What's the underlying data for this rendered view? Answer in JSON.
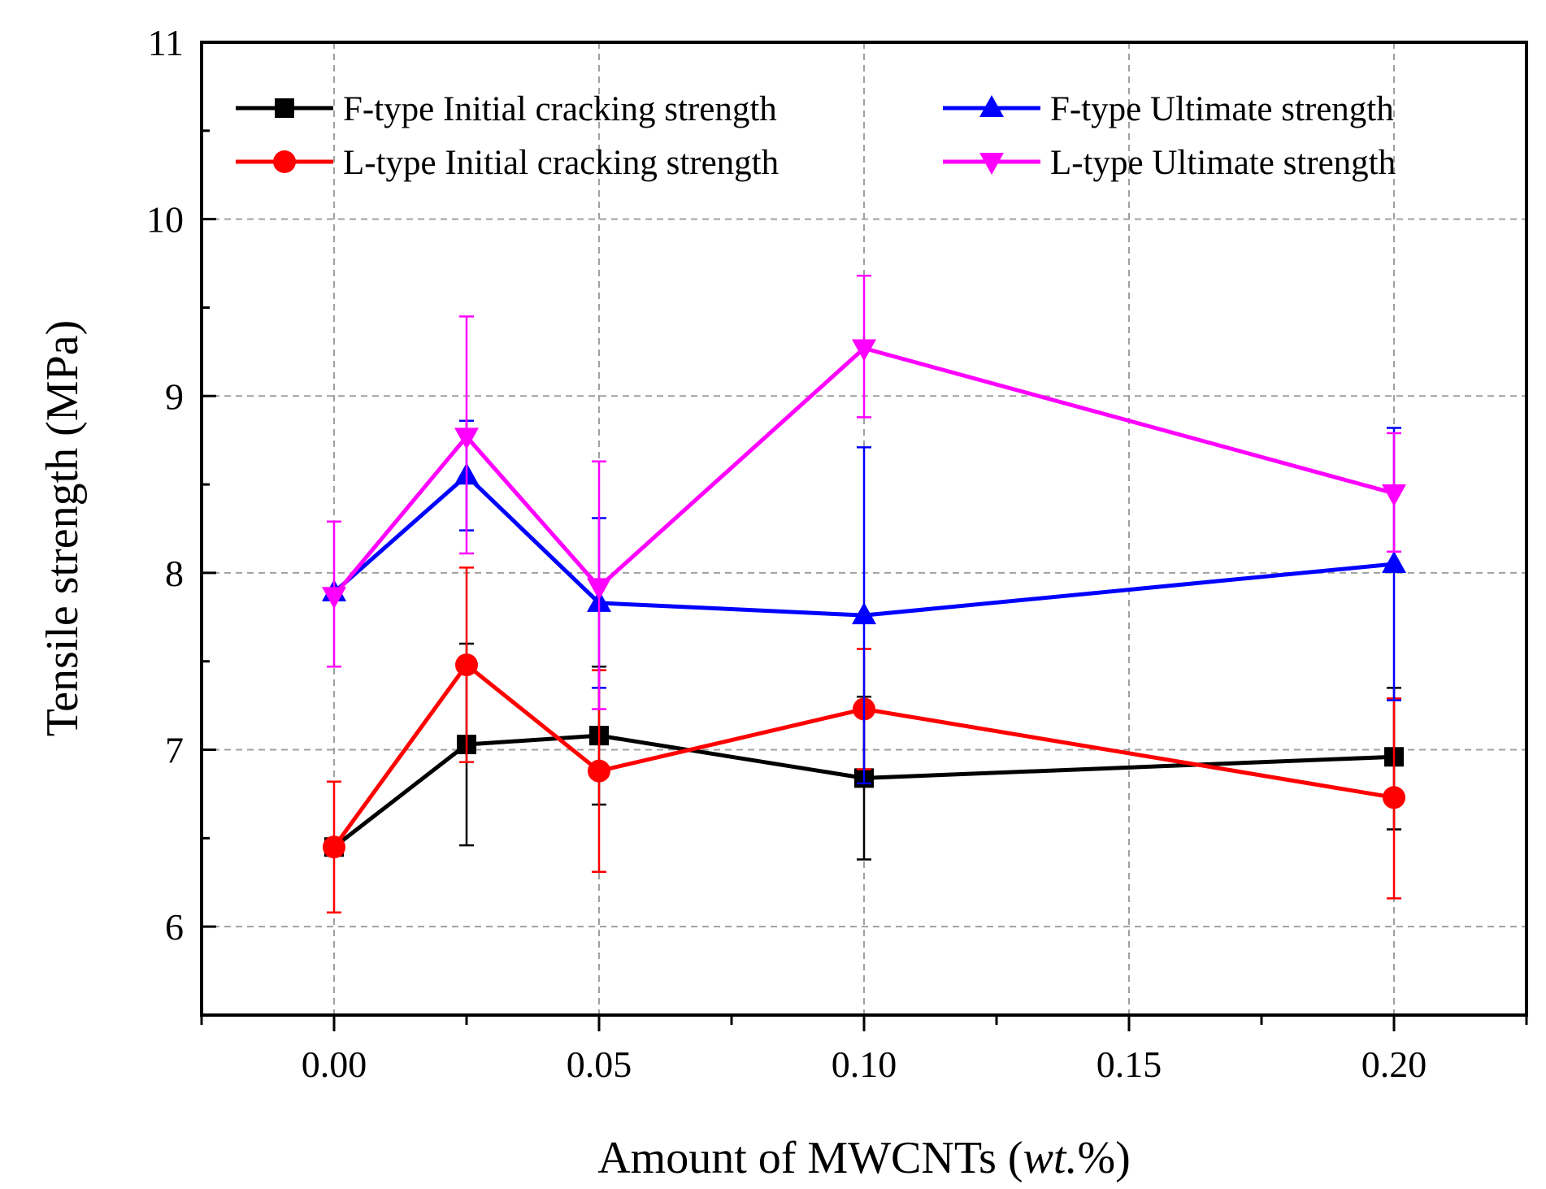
{
  "chart_data": {
    "type": "line",
    "title": "",
    "xlabel": "Amount of MWCNTs (",
    "xlabel_italic": "wt.",
    "xlabel_suffix": "%)",
    "ylabel": "Tensile strength (MPa)",
    "xlim": [
      -0.025,
      0.225
    ],
    "ylim": [
      5.5,
      11
    ],
    "x_ticks": [
      0.0,
      0.05,
      0.1,
      0.15,
      0.2
    ],
    "x_tick_labels": [
      "0.00",
      "0.05",
      "0.10",
      "0.15",
      "0.20"
    ],
    "y_ticks": [
      6,
      7,
      8,
      9,
      10,
      11
    ],
    "y_tick_labels": [
      "6",
      "7",
      "8",
      "9",
      "10",
      "11"
    ],
    "grid": true,
    "legend_position": "top",
    "x": [
      0.0,
      0.025,
      0.05,
      0.1,
      0.2
    ],
    "series": [
      {
        "name": "F-type Initial cracking strength",
        "color": "#000000",
        "marker": "square",
        "values": [
          6.45,
          7.03,
          7.08,
          6.84,
          6.96
        ],
        "err_upper": [
          6.45,
          7.6,
          7.47,
          7.3,
          7.35
        ],
        "err_lower": [
          6.45,
          6.46,
          6.69,
          6.38,
          6.55
        ]
      },
      {
        "name": "L-type Initial cracking strength",
        "color": "#ff0000",
        "marker": "circle",
        "values": [
          6.45,
          7.48,
          6.88,
          7.23,
          6.73
        ],
        "err_upper": [
          6.82,
          8.03,
          7.45,
          7.57,
          7.29
        ],
        "err_lower": [
          6.08,
          6.93,
          6.31,
          6.89,
          6.16
        ]
      },
      {
        "name": "F-type Ultimate strength",
        "color": "#0000ff",
        "marker": "triangle-up",
        "values": [
          7.89,
          8.55,
          7.83,
          7.76,
          8.05
        ],
        "err_upper": [
          7.89,
          8.86,
          8.31,
          8.71,
          8.82
        ],
        "err_lower": [
          7.89,
          8.24,
          7.35,
          6.81,
          7.28
        ]
      },
      {
        "name": "L-type Ultimate strength",
        "color": "#ff00ff",
        "marker": "triangle-down",
        "values": [
          7.87,
          8.77,
          7.92,
          9.27,
          8.45
        ],
        "err_upper": [
          8.29,
          9.45,
          8.63,
          9.68,
          8.79
        ],
        "err_lower": [
          7.47,
          8.11,
          7.23,
          8.88,
          8.12
        ]
      }
    ]
  }
}
